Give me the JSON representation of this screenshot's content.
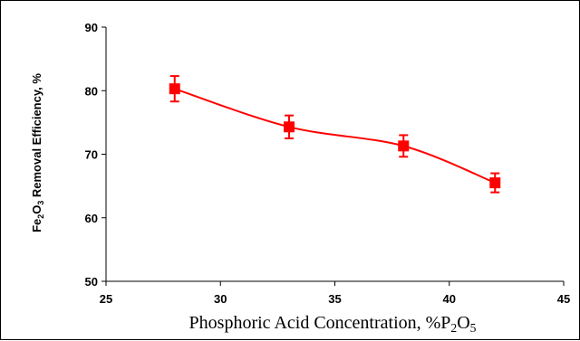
{
  "chart_data": {
    "type": "line",
    "xlabel": {
      "prefix": "Phosphoric Acid Concentration, %P",
      "sub1": "2",
      "mid": "O",
      "sub2": "5"
    },
    "ylabel": {
      "prefix": "Fe",
      "sub1": "2",
      "mid": "O",
      "sub2": "3",
      "suffix": " Removal Efficiency, %"
    },
    "xlim": [
      25,
      45
    ],
    "ylim": [
      50,
      90
    ],
    "x_ticks": [
      25,
      30,
      35,
      40,
      45
    ],
    "y_ticks": [
      50,
      60,
      70,
      80,
      90
    ],
    "grid": false,
    "series": [
      {
        "x": [
          28,
          33,
          38,
          42
        ],
        "y": [
          80.3,
          74.3,
          71.3,
          65.5
        ],
        "error": [
          2.0,
          1.8,
          1.7,
          1.5
        ],
        "color": "#ff0000",
        "marker": "square",
        "smooth": true
      }
    ]
  }
}
